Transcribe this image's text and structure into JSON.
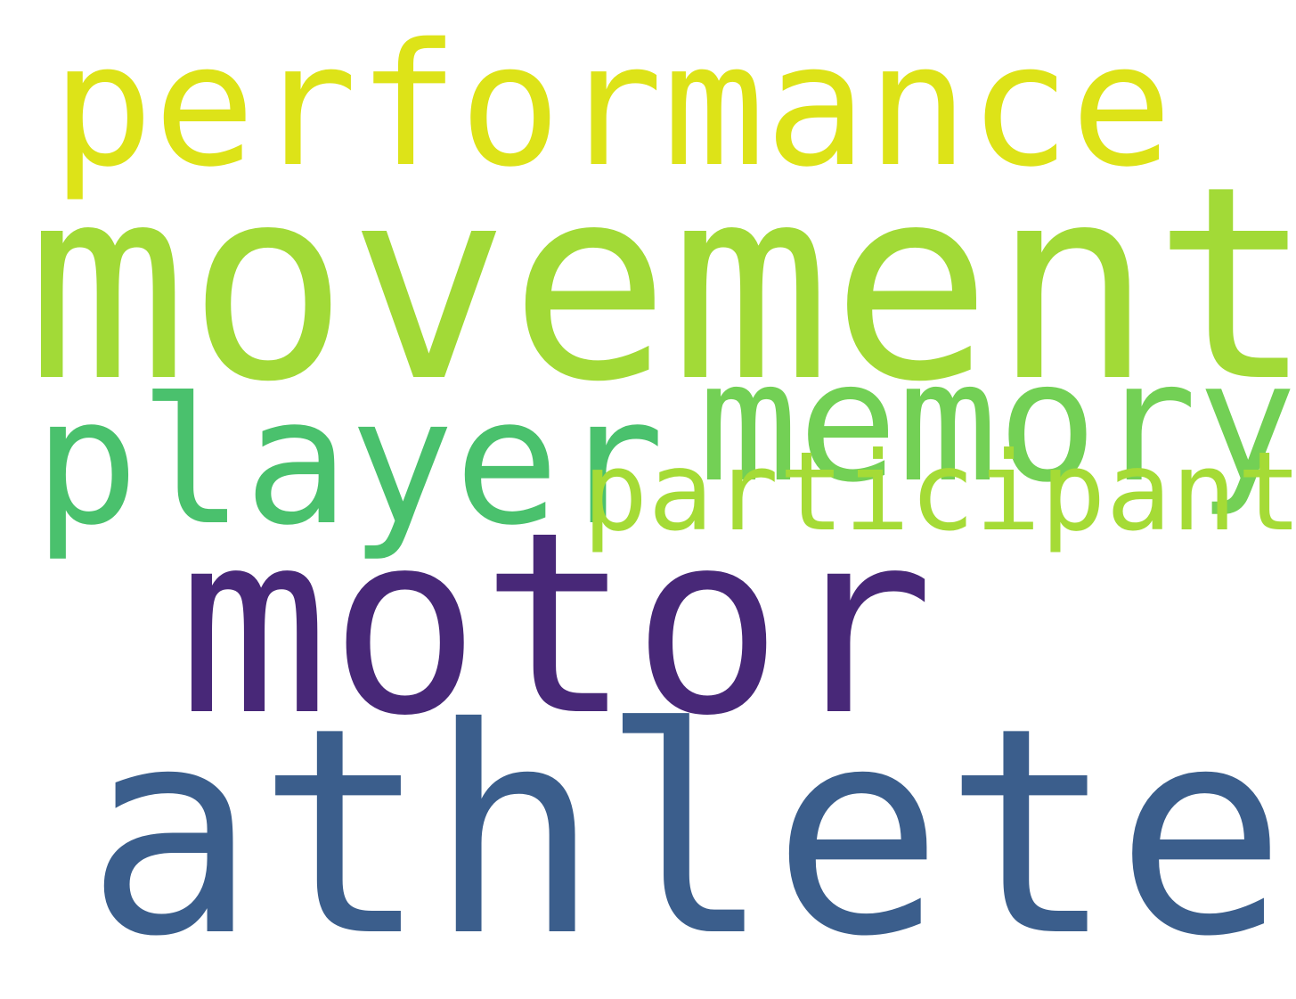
{
  "word_cloud": {
    "background_color": "#ffffff",
    "words": [
      {
        "id": "performance",
        "text": "performance",
        "color": "#dde318"
      },
      {
        "id": "movement",
        "text": "movement",
        "color": "#a2da37"
      },
      {
        "id": "memory",
        "text": "memory",
        "color": "#73d055"
      },
      {
        "id": "player",
        "text": "player",
        "color": "#4ac16d"
      },
      {
        "id": "participant",
        "text": "participant",
        "color": "#a5db36"
      },
      {
        "id": "motor",
        "text": "motor",
        "color": "#482878"
      },
      {
        "id": "athlete",
        "text": "athlete",
        "color": "#3b5e8c"
      }
    ]
  }
}
